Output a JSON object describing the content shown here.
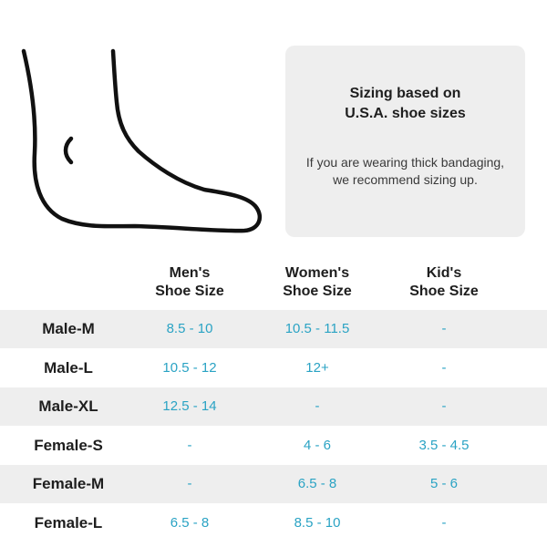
{
  "info_card": {
    "title_line1": "Sizing based on",
    "title_line2": "U.S.A. shoe sizes",
    "note": "If you are wearing thick bandaging, we recommend sizing up."
  },
  "columns": [
    {
      "line1": "Men's",
      "line2": "Shoe Size"
    },
    {
      "line1": "Women's",
      "line2": "Shoe Size"
    },
    {
      "line1": "Kid's",
      "line2": "Shoe Size"
    }
  ],
  "rows": [
    {
      "label": "Male-M",
      "men": "8.5 - 10",
      "women": "10.5 - 11.5",
      "kids": "-"
    },
    {
      "label": "Male-L",
      "men": "10.5 - 12",
      "women": "12+",
      "kids": "-"
    },
    {
      "label": "Male-XL",
      "men": "12.5 - 14",
      "women": "-",
      "kids": "-"
    },
    {
      "label": "Female-S",
      "men": "-",
      "women": "4 - 6",
      "kids": "3.5 - 4.5"
    },
    {
      "label": "Female-M",
      "men": "-",
      "women": "6.5 - 8",
      "kids": "5 - 6"
    },
    {
      "label": "Female-L",
      "men": "6.5 - 8",
      "women": "8.5 - 10",
      "kids": "-"
    }
  ],
  "colors": {
    "value_text": "#2aa3c4",
    "shaded_row": "#eeeeee",
    "label_text": "#1e1e1e"
  },
  "icons": {
    "illustration": "foot-outline-icon"
  }
}
